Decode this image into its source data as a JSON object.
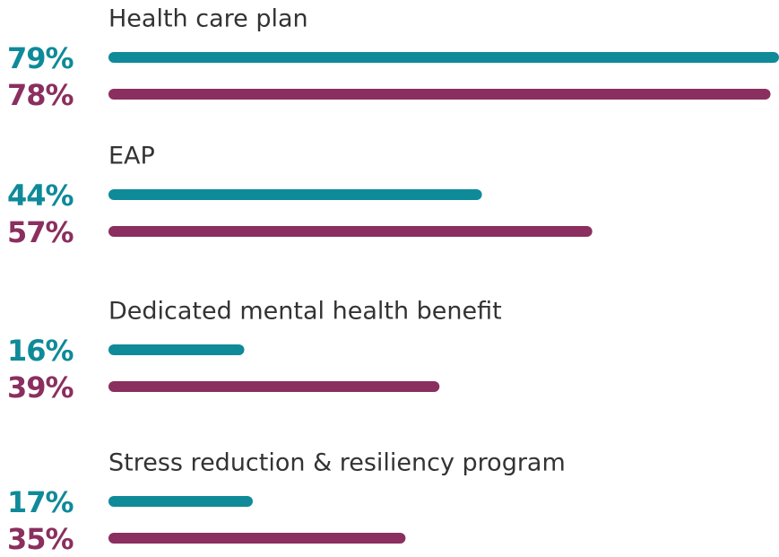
{
  "chart_data": {
    "type": "bar",
    "orientation": "horizontal",
    "categories": [
      "Health care plan",
      "EAP",
      "Dedicated mental health benefit",
      "Stress reduction & resiliency program"
    ],
    "series": [
      {
        "color": "#0f8a99",
        "values": [
          79,
          44,
          16,
          17
        ],
        "value_labels": [
          "79%",
          "44%",
          "16%",
          "17%"
        ]
      },
      {
        "color": "#8a2f5f",
        "values": [
          78,
          57,
          39,
          35
        ],
        "value_labels": [
          "78%",
          "57%",
          "39%",
          "35%"
        ]
      }
    ],
    "xlim": [
      0,
      79
    ]
  }
}
